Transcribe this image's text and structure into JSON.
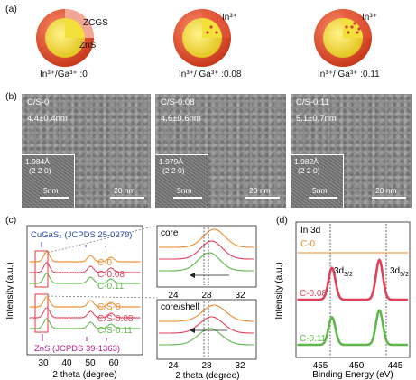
{
  "panel_a": {
    "letter": "(a)",
    "labels": [
      {
        "ratio": "In³⁺/Ga³⁺ :0"
      },
      {
        "ratio": "In³⁺/ Ga³⁺ :0.08"
      },
      {
        "ratio": "In³⁺/ Ga³⁺ :0.11"
      }
    ],
    "callouts": {
      "core": "ZCGS",
      "shell": "ZnS",
      "ion1": "In³⁺",
      "ion2": "In³⁺"
    },
    "colors": {
      "shell": "#e8573a",
      "core": "#f4e03a"
    }
  },
  "panel_b": {
    "letter": "(b)",
    "images": [
      {
        "name": "C/S-0",
        "size": "4.4±0.4nm",
        "spacing": "1.984Å",
        "plane": "(2 2 0)",
        "inset_scale": "5nm",
        "scale": "20 nm"
      },
      {
        "name": "C/S-0.08",
        "size": "4.6±0.6nm",
        "spacing": "1.979Å",
        "plane": "(2 2 0)",
        "inset_scale": "5nm",
        "scale": "20 nm"
      },
      {
        "name": "C/S-0.11",
        "size": "5.1±0.7nm",
        "spacing": "1.982Å",
        "plane": "(2 2 0)",
        "inset_scale": "5nm",
        "scale": "20 nm"
      }
    ]
  },
  "panel_c": {
    "letter": "(c)",
    "ylabel": "Intensity (a.u.)",
    "xlabel": "2 theta (degree)",
    "top_ref": "CuGaS₂ (JCPDS 25-0279)",
    "bottom_ref": "ZnS (JCPDS 39-1363)",
    "xticks": [
      "30",
      "40",
      "50",
      "60"
    ],
    "zoom_core_title": "core",
    "zoom_shell_title": "core/shell",
    "zoom_xticks": [
      "24",
      "28",
      "32"
    ]
  },
  "panel_d": {
    "letter": "(d)",
    "title": "In 3d",
    "ylabel": "Intensity (a.u.)",
    "xlabel": "Binding Energy (eV)",
    "xticks": [
      "455",
      "450",
      "445"
    ],
    "peak1": "3d",
    "peak1_sub": "3/2",
    "peak2": "3d",
    "peak2_sub": "5/2"
  },
  "chart_data": [
    {
      "type": "line",
      "title": "",
      "xlabel": "2 theta (degree)",
      "ylabel": "Intensity (a.u.)",
      "xlim": [
        20,
        70
      ],
      "series": [
        {
          "name": "C-0",
          "color": "#f08a2a"
        },
        {
          "name": "C-0.08",
          "color": "#e0405a"
        },
        {
          "name": "C-0.11",
          "color": "#5fb64a"
        },
        {
          "name": "C/S-0",
          "color": "#f08a2a"
        },
        {
          "name": "C/S-0.08",
          "color": "#e0405a"
        },
        {
          "name": "C/S-0.11",
          "color": "#5fb64a"
        }
      ],
      "peaks_2theta": [
        28.5,
        47.5,
        56.3
      ]
    },
    {
      "type": "line",
      "title": "In 3d",
      "xlabel": "Binding Energy (eV)",
      "ylabel": "Intensity (a.u.)",
      "xlim": [
        458,
        440
      ],
      "series": [
        {
          "name": "C-0",
          "color": "#f08a2a"
        },
        {
          "name": "C-0.08",
          "color": "#e0405a"
        },
        {
          "name": "C-0.11",
          "color": "#5fb64a"
        }
      ],
      "peaks_eV": [
        452.3,
        444.8
      ]
    }
  ]
}
